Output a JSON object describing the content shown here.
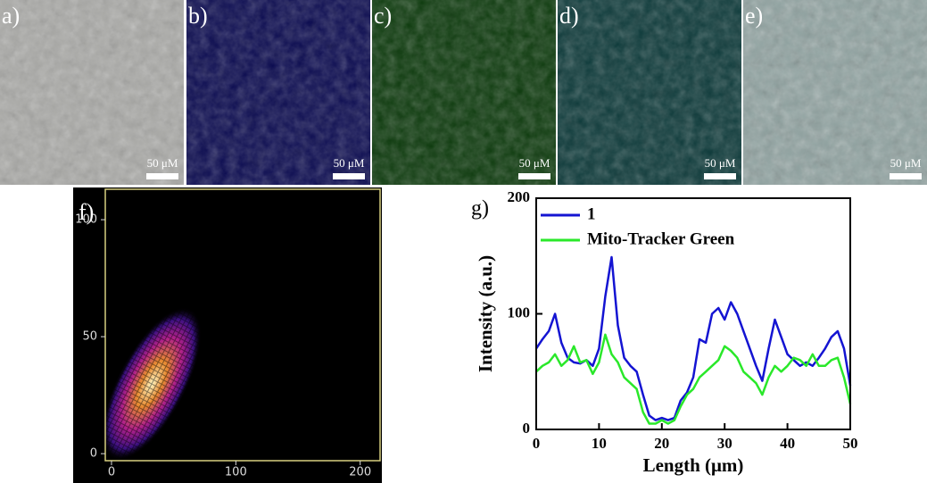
{
  "panels": [
    {
      "label": "a)",
      "scale_bar": "50 μM"
    },
    {
      "label": "b)",
      "scale_bar": "50 μM"
    },
    {
      "label": "c)",
      "scale_bar": "50 μM"
    },
    {
      "label": "d)",
      "scale_bar": "50 μM"
    },
    {
      "label": "e)",
      "scale_bar": "50 μM"
    }
  ],
  "chart_data": [
    {
      "type": "density",
      "label": "f)",
      "xlim": [
        -5,
        216
      ],
      "ylim": [
        -3,
        113
      ],
      "xticks": [
        0,
        100,
        200
      ],
      "yticks": [
        0,
        50,
        100
      ],
      "frame_color": "#d8d080"
    },
    {
      "type": "line",
      "label": "g)",
      "xlabel": "Length (μm)",
      "ylabel": "Intensity (a.u.)",
      "x": [
        0,
        1,
        2,
        3,
        4,
        5,
        6,
        7,
        8,
        9,
        10,
        11,
        12,
        13,
        14,
        15,
        16,
        17,
        18,
        19,
        20,
        21,
        22,
        23,
        24,
        25,
        26,
        27,
        28,
        29,
        30,
        31,
        32,
        33,
        34,
        35,
        36,
        37,
        38,
        39,
        40,
        41,
        42,
        43,
        44,
        45,
        46,
        47,
        48,
        49,
        50
      ],
      "series": [
        {
          "name": "1",
          "color": "#1414d2",
          "values": [
            70,
            78,
            85,
            100,
            75,
            62,
            58,
            57,
            60,
            55,
            70,
            115,
            149,
            90,
            62,
            55,
            50,
            30,
            12,
            8,
            10,
            8,
            10,
            25,
            32,
            45,
            78,
            75,
            100,
            105,
            95,
            110,
            100,
            85,
            70,
            55,
            42,
            70,
            95,
            80,
            65,
            60,
            55,
            58,
            55,
            62,
            70,
            80,
            85,
            70,
            38
          ]
        },
        {
          "name": "Mito-Tracker Green",
          "color": "#2ae82a",
          "values": [
            50,
            55,
            58,
            65,
            55,
            60,
            72,
            58,
            60,
            48,
            58,
            82,
            65,
            58,
            45,
            40,
            35,
            15,
            5,
            5,
            8,
            5,
            8,
            20,
            30,
            35,
            45,
            50,
            55,
            60,
            72,
            68,
            62,
            50,
            45,
            40,
            30,
            45,
            55,
            50,
            55,
            62,
            60,
            55,
            65,
            55,
            55,
            60,
            62,
            45,
            22
          ]
        }
      ],
      "xlim": [
        0,
        50
      ],
      "ylim": [
        0,
        200
      ],
      "xticks": [
        0,
        10,
        20,
        30,
        40,
        50
      ],
      "yticks": [
        0,
        100,
        200
      ],
      "legend": "upper left"
    }
  ]
}
